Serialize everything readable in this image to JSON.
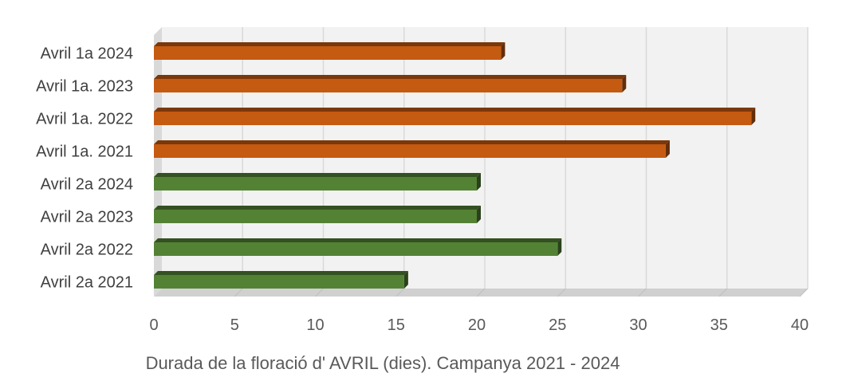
{
  "chart_data": {
    "type": "bar",
    "orientation": "horizontal",
    "style": "3d-clustered-bar",
    "categories": [
      "Avril 1a 2024",
      "Avril 1a. 2023",
      "Avril 1a. 2022",
      "Avril 1a. 2021",
      "Avril 2a 2024",
      "Avril 2a 2023",
      "Avril 2a 2022",
      "Avril 2a 2021"
    ],
    "values": [
      21.5,
      29,
      37,
      31.7,
      20,
      20,
      25,
      15.5
    ],
    "bar_colors": [
      "#c55a11",
      "#c55a11",
      "#c55a11",
      "#c55a11",
      "#548235",
      "#548235",
      "#548235",
      "#548235"
    ],
    "xlabel": "Durada de la floració d' AVRIL (dies). Campanya 2021 - 2024",
    "ylabel": "",
    "xlim": [
      0,
      40
    ],
    "xticks": [
      "0",
      "5",
      "10",
      "15",
      "20",
      "25",
      "30",
      "35",
      "40"
    ],
    "grid": true,
    "legend": "none"
  }
}
